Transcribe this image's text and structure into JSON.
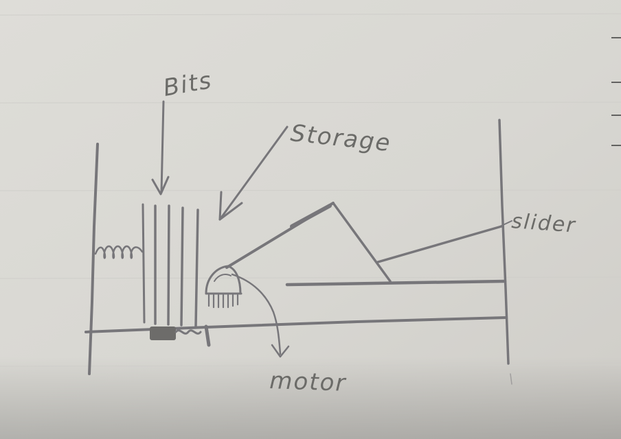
{
  "labels": {
    "bits": "Bits",
    "storage": "Storage",
    "slider": "slider",
    "motor": "motor"
  },
  "colors": {
    "paper": "#d9d8d3",
    "pencil": "#77767a",
    "rule_line": "#c9c8c6"
  }
}
